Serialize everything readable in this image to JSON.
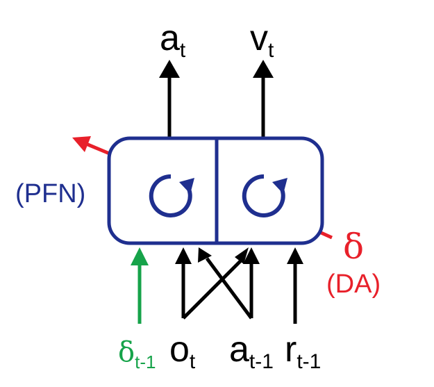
{
  "outputs": {
    "action": {
      "base": "a",
      "sub": "t"
    },
    "value": {
      "base": "v",
      "sub": "t"
    }
  },
  "labels": {
    "pfn": "(PFN)",
    "delta": "δ",
    "da": "(DA)"
  },
  "inputs": {
    "delta_prev": {
      "base": "δ",
      "sub": "t-1"
    },
    "observation": {
      "base": "o",
      "sub": "t"
    },
    "action_prev": {
      "base": "a",
      "sub": "t-1"
    },
    "reward_prev": {
      "base": "r",
      "sub": "t-1"
    }
  },
  "colors": {
    "module": "#1f2f8f",
    "arrow": "#000000",
    "dopamine": "#e8202a",
    "delta_input": "#16a34a"
  },
  "icons": {
    "recurrence_left": "recurrent-loop-icon",
    "recurrence_right": "recurrent-loop-icon"
  }
}
